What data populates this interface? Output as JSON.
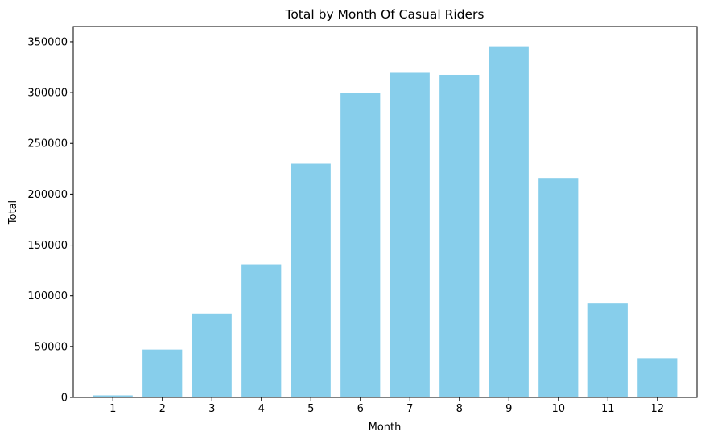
{
  "chart_data": {
    "type": "bar",
    "title": "Total by Month Of Casual Riders",
    "xlabel": "Month",
    "ylabel": "Total",
    "categories": [
      "1",
      "2",
      "3",
      "4",
      "5",
      "6",
      "7",
      "8",
      "9",
      "10",
      "11",
      "12"
    ],
    "values": [
      2000,
      47000,
      82500,
      131000,
      230000,
      300000,
      319500,
      317500,
      345500,
      216000,
      92500,
      38500
    ],
    "ylim": [
      0,
      365000
    ],
    "yticks": [
      0,
      50000,
      100000,
      150000,
      200000,
      250000,
      300000,
      350000
    ],
    "ytick_labels": [
      "0",
      "50000",
      "100000",
      "150000",
      "200000",
      "250000",
      "300000",
      "350000"
    ],
    "grid": false,
    "bar_color": "#87CEEB"
  }
}
